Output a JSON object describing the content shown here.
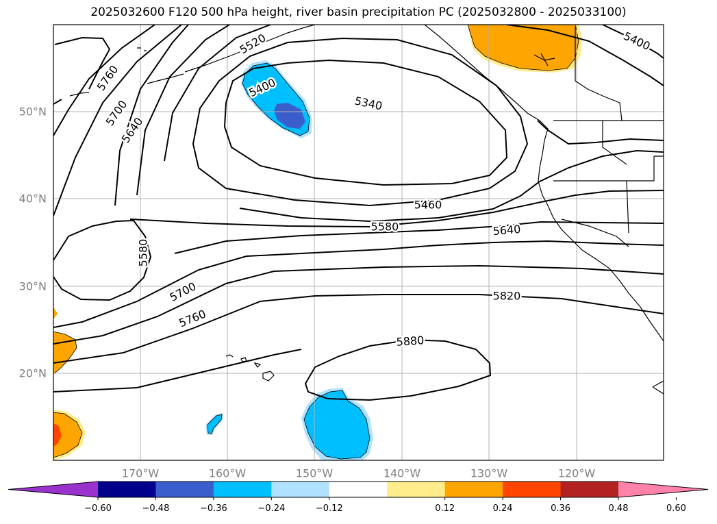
{
  "title": "2025032600 F120 500 hPa height, river basin precipitation PC (2025032800 - 2025033100)",
  "map": {
    "lat_labels": [
      "50°N",
      "40°N",
      "30°N",
      "20°N"
    ],
    "lon_labels": [
      "170°W",
      "160°W",
      "150°W",
      "140°W",
      "130°W",
      "120°W"
    ]
  },
  "contour_labels": [
    {
      "id": "c5760a",
      "text": "5760"
    },
    {
      "id": "c5700a",
      "text": "5700"
    },
    {
      "id": "c5640a",
      "text": "5640"
    },
    {
      "id": "c5520",
      "text": "5520"
    },
    {
      "id": "c5400a",
      "text": "5400"
    },
    {
      "id": "c5340",
      "text": "5340"
    },
    {
      "id": "c5400b",
      "text": "5400"
    },
    {
      "id": "c5460",
      "text": "5460"
    },
    {
      "id": "c5580a",
      "text": "5580"
    },
    {
      "id": "c5640b",
      "text": "5640"
    },
    {
      "id": "c5580b",
      "text": "5580"
    },
    {
      "id": "c5700b",
      "text": "5700"
    },
    {
      "id": "c5820",
      "text": "5820"
    },
    {
      "id": "c5760b",
      "text": "5760"
    },
    {
      "id": "c5880",
      "text": "5880"
    }
  ],
  "colorbar": {
    "ticks": [
      "−0.60",
      "−0.48",
      "−0.36",
      "−0.24",
      "−0.12",
      "0.12",
      "0.24",
      "0.36",
      "0.48",
      "0.60"
    ],
    "colors": [
      "#9a32cd",
      "#00008b",
      "#3a5fcd",
      "#00bfff",
      "#b0e2ff",
      "#ffffff",
      "#ffec8b",
      "#ffa500",
      "#ff4500",
      "#b22222",
      "#ff82ab"
    ]
  }
}
